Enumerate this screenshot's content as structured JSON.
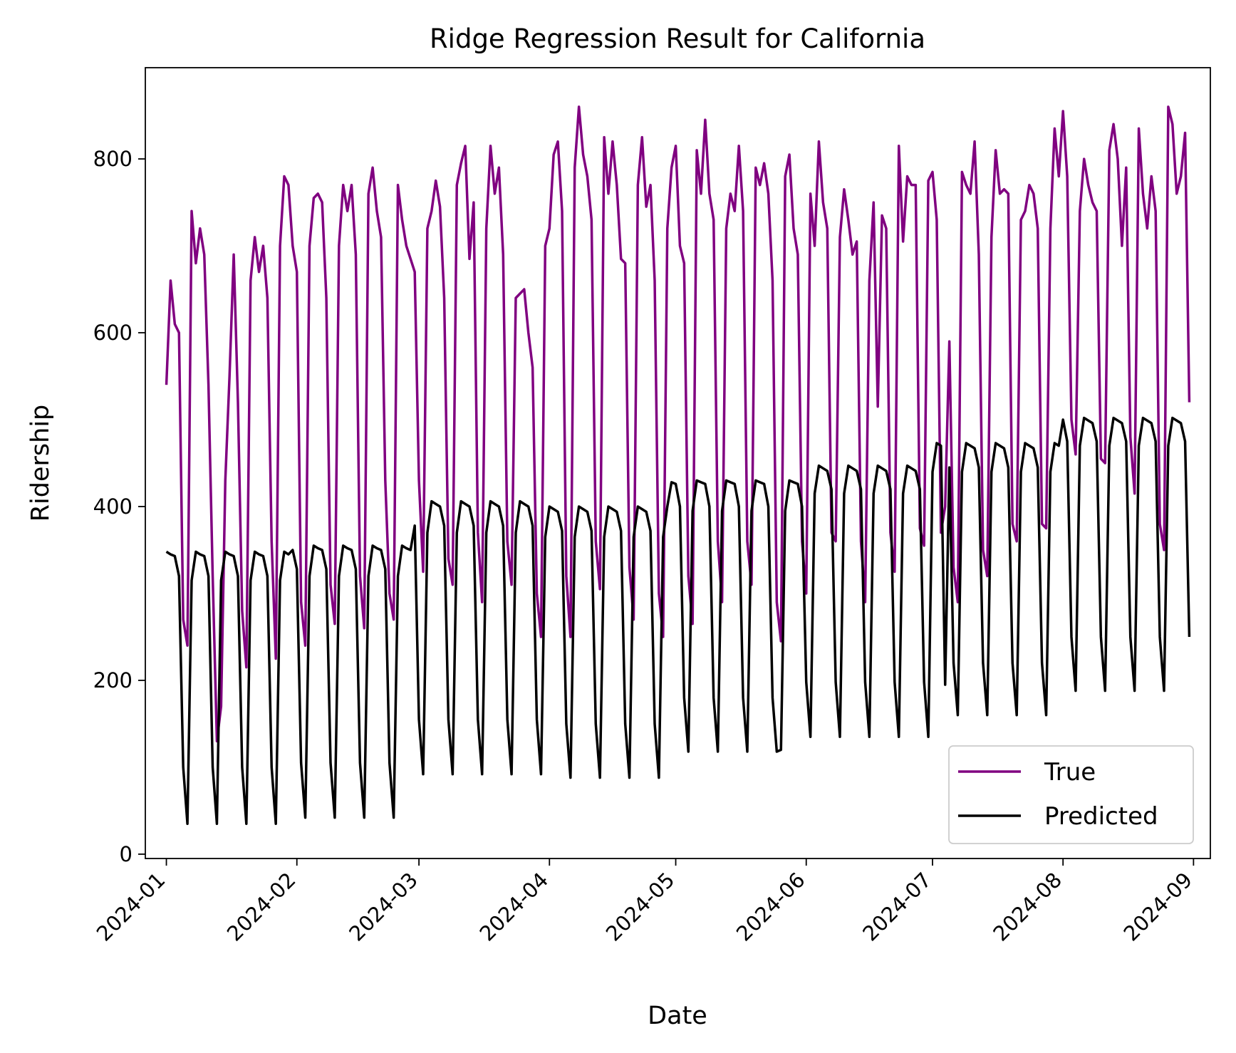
{
  "chart_data": {
    "type": "line",
    "title": "Ridge Regression Result for California",
    "xlabel": "Date",
    "ylabel": "Ridership",
    "xlim": [
      "2023-12-27",
      "2024-09-05"
    ],
    "ylim": [
      -5,
      905
    ],
    "x_ticks": [
      "2024-01",
      "2024-02",
      "2024-03",
      "2024-04",
      "2024-05",
      "2024-06",
      "2024-07",
      "2024-08",
      "2024-09"
    ],
    "y_ticks": [
      0,
      200,
      400,
      600,
      800
    ],
    "legend_position": "lower-right",
    "grid": false,
    "start_date": "2024-01-01",
    "series": [
      {
        "name": "True",
        "color": "#800080",
        "values": [
          540,
          660,
          610,
          600,
          270,
          240,
          740,
          680,
          720,
          690,
          540,
          320,
          130,
          170,
          430,
          550,
          690,
          520,
          280,
          215,
          660,
          710,
          670,
          700,
          640,
          360,
          225,
          700,
          780,
          770,
          700,
          670,
          290,
          240,
          700,
          755,
          760,
          750,
          640,
          310,
          265,
          700,
          770,
          740,
          770,
          690,
          320,
          260,
          760,
          790,
          740,
          710,
          430,
          300,
          270,
          770,
          730,
          700,
          685,
          670,
          430,
          325,
          720,
          740,
          775,
          745,
          640,
          340,
          310,
          770,
          795,
          815,
          685,
          750,
          370,
          290,
          720,
          815,
          760,
          790,
          690,
          360,
          310,
          640,
          645,
          650,
          600,
          560,
          300,
          250,
          700,
          720,
          805,
          820,
          740,
          320,
          250,
          790,
          860,
          805,
          780,
          730,
          360,
          305,
          825,
          760,
          820,
          770,
          685,
          680,
          330,
          270,
          770,
          825,
          745,
          770,
          660,
          300,
          250,
          720,
          790,
          815,
          700,
          680,
          320,
          265,
          810,
          760,
          845,
          760,
          730,
          360,
          290,
          720,
          760,
          740,
          815,
          740,
          360,
          310,
          790,
          770,
          795,
          760,
          660,
          290,
          245,
          780,
          805,
          720,
          690,
          360,
          300,
          760,
          700,
          820,
          750,
          720,
          370,
          360,
          710,
          765,
          730,
          690,
          705,
          360,
          290,
          660,
          750,
          515,
          735,
          720,
          370,
          325,
          815,
          705,
          780,
          770,
          770,
          375,
          355,
          775,
          785,
          730,
          370,
          400,
          590,
          330,
          290,
          785,
          770,
          760,
          820,
          690,
          350,
          320,
          710,
          810,
          760,
          765,
          760,
          380,
          360,
          730,
          740,
          770,
          760,
          720,
          380,
          375,
          720,
          835,
          780,
          855,
          780,
          500,
          460,
          740,
          800,
          770,
          750,
          740,
          455,
          450,
          810,
          840,
          800,
          700,
          790,
          480,
          415,
          835,
          760,
          720,
          780,
          740,
          380,
          350,
          860,
          840,
          760,
          780,
          830,
          520
        ]
      },
      {
        "name": "Predicted",
        "color": "#000000",
        "values": [
          348,
          345,
          343,
          320,
          100,
          35,
          315,
          348,
          345,
          343,
          320,
          100,
          35,
          315,
          348,
          345,
          343,
          320,
          100,
          35,
          315,
          348,
          345,
          343,
          320,
          100,
          35,
          315,
          348,
          345,
          350,
          328,
          105,
          42,
          320,
          355,
          352,
          350,
          328,
          105,
          42,
          320,
          355,
          352,
          350,
          328,
          105,
          42,
          320,
          355,
          352,
          350,
          328,
          105,
          42,
          320,
          355,
          352,
          350,
          378,
          155,
          92,
          370,
          406,
          403,
          400,
          378,
          155,
          92,
          370,
          406,
          403,
          400,
          378,
          155,
          92,
          370,
          406,
          403,
          400,
          378,
          155,
          92,
          370,
          406,
          403,
          400,
          378,
          155,
          92,
          365,
          400,
          397,
          394,
          372,
          150,
          88,
          365,
          400,
          397,
          394,
          372,
          150,
          88,
          365,
          400,
          397,
          394,
          372,
          150,
          88,
          365,
          400,
          397,
          394,
          372,
          150,
          88,
          365,
          400,
          428,
          426,
          400,
          180,
          118,
          395,
          430,
          428,
          426,
          400,
          180,
          118,
          395,
          430,
          428,
          426,
          400,
          180,
          118,
          395,
          430,
          428,
          426,
          400,
          180,
          118,
          120,
          395,
          430,
          428,
          426,
          400,
          198,
          135,
          415,
          447,
          444,
          441,
          420,
          198,
          135,
          415,
          447,
          444,
          441,
          420,
          198,
          135,
          415,
          447,
          444,
          441,
          420,
          198,
          135,
          415,
          447,
          444,
          441,
          420,
          198,
          135,
          440,
          473,
          470,
          195,
          445,
          220,
          160,
          440,
          473,
          470,
          467,
          445,
          220,
          160,
          440,
          473,
          470,
          467,
          445,
          220,
          160,
          440,
          473,
          470,
          467,
          445,
          220,
          160,
          440,
          473,
          470,
          500,
          475,
          250,
          188,
          470,
          502,
          499,
          496,
          475,
          250,
          188,
          470,
          502,
          499,
          496,
          475,
          250,
          188,
          470,
          502,
          499,
          496,
          475,
          250,
          188,
          470,
          502,
          499,
          496,
          475,
          250
        ]
      }
    ]
  }
}
